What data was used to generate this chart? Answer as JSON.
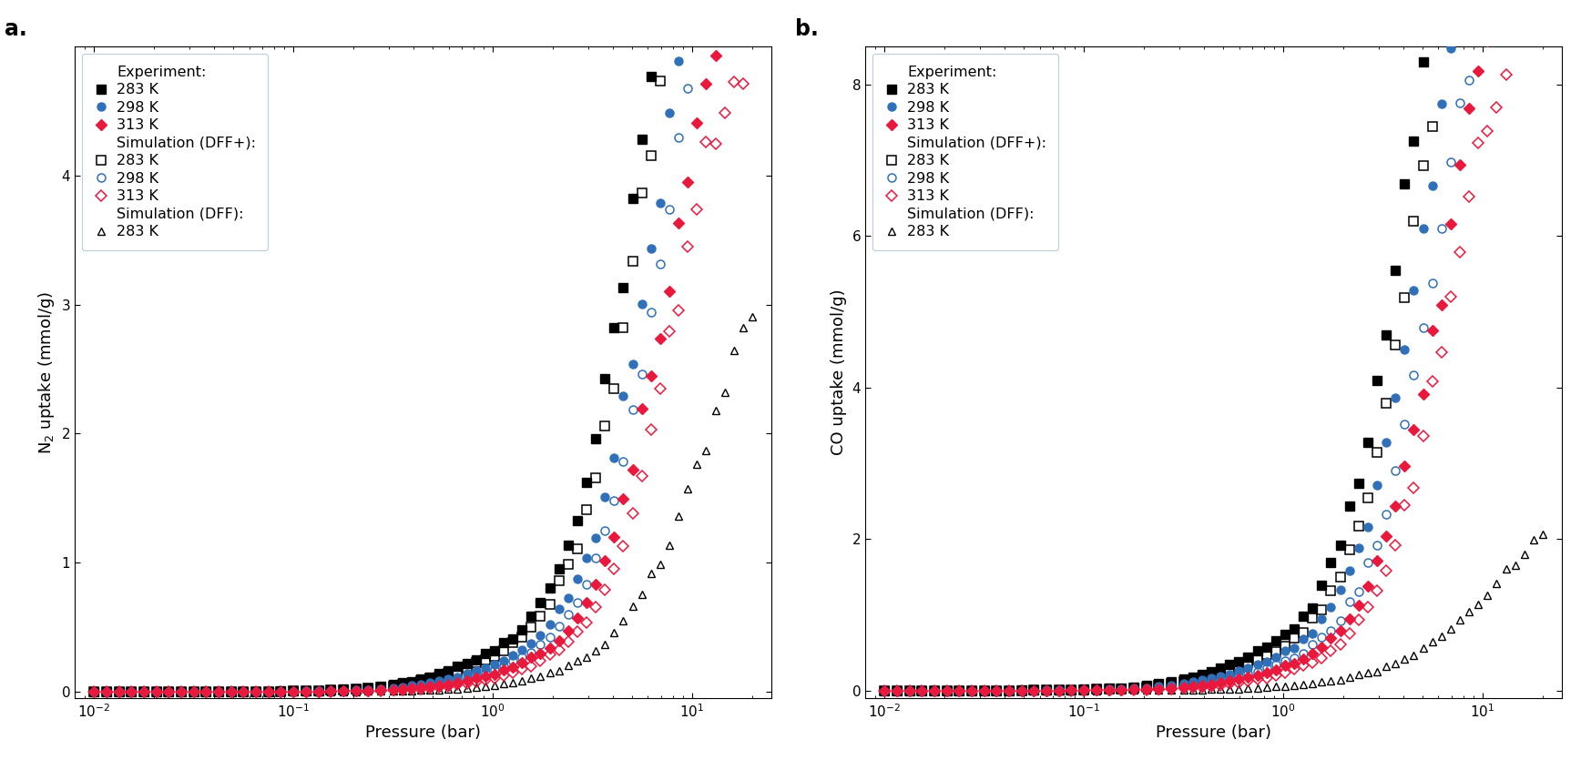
{
  "fig_width": 17.36,
  "fig_height": 8.35,
  "dpi": 100,
  "background_color": "#ffffff",
  "panel_a": {
    "title": "a.",
    "ylabel": "N$_2$ uptake (mmol/g)",
    "xlabel": "Pressure (bar)",
    "xlim": [
      0.008,
      25
    ],
    "ylim": [
      -0.05,
      5.0
    ],
    "yticks": [
      0,
      1,
      2,
      3,
      4
    ],
    "legend_labels": {
      "exp_header": "Experiment:",
      "exp_283": "283 K",
      "exp_298": "298 K",
      "exp_313": "313 K",
      "sim_dffp_header": "Simulation (DFF+):",
      "sim_dffp_283": "283 K",
      "sim_dffp_298": "298 K",
      "sim_dffp_313": "313 K",
      "sim_dff_header": "Simulation (DFF):",
      "sim_dff_283": "283 K"
    }
  },
  "panel_b": {
    "title": "b.",
    "ylabel": "CO uptake (mmol/g)",
    "xlabel": "Pressure (bar)",
    "xlim": [
      0.008,
      25
    ],
    "ylim": [
      -0.1,
      8.5
    ],
    "yticks": [
      0,
      2,
      4,
      6,
      8
    ],
    "legend_labels": {
      "exp_header": "Experiment:",
      "exp_283": "283 K",
      "exp_298": "298 K",
      "exp_313": "313 K",
      "sim_dffp_header": "Simulation (DFF+):",
      "sim_dffp_283": "283 K",
      "sim_dffp_298": "298 K",
      "sim_dffp_313": "313 K",
      "sim_dff_header": "Simulation (DFF):",
      "sim_dff_283": "283 K"
    }
  },
  "colors": {
    "black": "#000000",
    "blue": "#3070b8",
    "red": "#e8193c"
  },
  "marker_size": 5.5,
  "marker_size_large": 6.5,
  "legend_fontsize": 11.5,
  "axis_fontsize": 13,
  "label_fontsize": 17
}
